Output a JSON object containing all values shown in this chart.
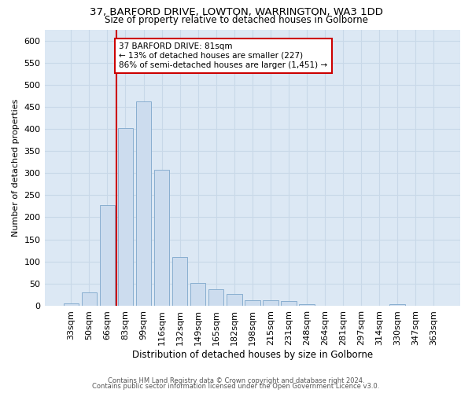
{
  "title": "37, BARFORD DRIVE, LOWTON, WARRINGTON, WA3 1DD",
  "subtitle": "Size of property relative to detached houses in Golborne",
  "xlabel": "Distribution of detached houses by size in Golborne",
  "ylabel": "Number of detached properties",
  "categories": [
    "33sqm",
    "50sqm",
    "66sqm",
    "83sqm",
    "99sqm",
    "116sqm",
    "132sqm",
    "149sqm",
    "165sqm",
    "182sqm",
    "198sqm",
    "215sqm",
    "231sqm",
    "248sqm",
    "264sqm",
    "281sqm",
    "297sqm",
    "314sqm",
    "330sqm",
    "347sqm",
    "363sqm"
  ],
  "values": [
    5,
    30,
    227,
    401,
    462,
    307,
    110,
    52,
    38,
    26,
    13,
    13,
    10,
    3,
    0,
    0,
    0,
    0,
    3,
    0,
    0
  ],
  "bar_color": "#ccdcee",
  "bar_edge_color": "#88aed0",
  "grid_color": "#c8d8e8",
  "background_color": "#dce8f4",
  "vline_color": "#cc0000",
  "annotation_text": "37 BARFORD DRIVE: 81sqm\n← 13% of detached houses are smaller (227)\n86% of semi-detached houses are larger (1,451) →",
  "annotation_box_color": "#ffffff",
  "annotation_box_edge": "#cc0000",
  "footer1": "Contains HM Land Registry data © Crown copyright and database right 2024.",
  "footer2": "Contains public sector information licensed under the Open Government Licence v3.0.",
  "ylim": [
    0,
    625
  ],
  "yticks": [
    0,
    50,
    100,
    150,
    200,
    250,
    300,
    350,
    400,
    450,
    500,
    550,
    600
  ]
}
